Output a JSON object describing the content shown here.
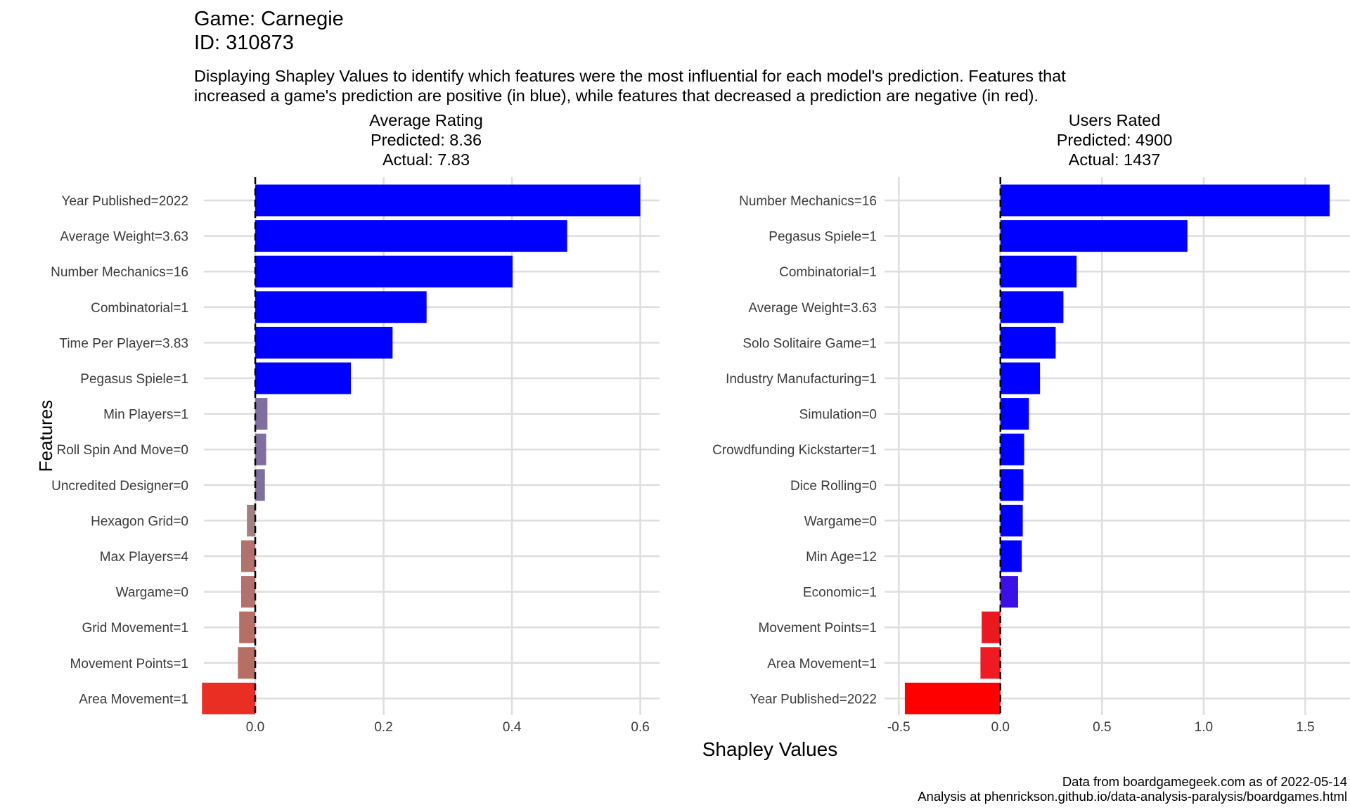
{
  "header": {
    "title_line1": "Game: Carnegie",
    "title_line2": "ID: 310873",
    "subtitle_line1": "Displaying Shapley Values to identify which features were the most influential for each model's prediction. Features that",
    "subtitle_line2": "increased a game's prediction are positive (in blue), while features that decreased a prediction are negative (in red)."
  },
  "axes": {
    "ylabel": "Features",
    "xlabel": "Shapley Values"
  },
  "caption": {
    "line1": "Data from boardgamegeek.com as of 2022-05-14",
    "line2": "Analysis at phenrickson.github.io/data-analysis-paralysis/boardgames.html"
  },
  "colors": {
    "positive": "#0000ff",
    "negative": "#ff0000",
    "grid": "#dedede",
    "zero_line": "#000000"
  },
  "chart_data": [
    {
      "type": "bar",
      "orientation": "horizontal",
      "title_lines": [
        "Average Rating",
        "Predicted: 8.36",
        "Actual: 7.83"
      ],
      "xlim": [
        -0.08,
        0.63
      ],
      "xticks": [
        0.0,
        0.2,
        0.4,
        0.6
      ],
      "xtick_labels": [
        "0.0",
        "0.2",
        "0.4",
        "0.6"
      ],
      "grid": true,
      "zero_line": "dashed",
      "categories": [
        "Year Published=2022",
        "Average Weight=3.63",
        "Number Mechanics=16",
        "Combinatorial=1",
        "Time Per Player=3.83",
        "Pegasus Spiele=1",
        "Min Players=1",
        "Roll Spin And Move=0",
        "Uncredited Designer=0",
        "Hexagon Grid=0",
        "Max Players=4",
        "Wargame=0",
        "Grid Movement=1",
        "Movement Points=1",
        "Area Movement=1"
      ],
      "values": [
        0.6,
        0.486,
        0.401,
        0.267,
        0.214,
        0.149,
        0.019,
        0.017,
        0.015,
        -0.013,
        -0.022,
        -0.022,
        -0.025,
        -0.027,
        -0.083
      ],
      "bar_colors": [
        "#0000ff",
        "#0000ff",
        "#0000ff",
        "#0000ff",
        "#0000ff",
        "#0000ff",
        "#7f6e9e",
        "#7f6e9e",
        "#7e6f9c",
        "#a08180",
        "#b0726a",
        "#b0726a",
        "#b56f66",
        "#b66f64",
        "#e92e24"
      ]
    },
    {
      "type": "bar",
      "orientation": "horizontal",
      "title_lines": [
        "Users Rated",
        "Predicted: 4900",
        "Actual: 1437"
      ],
      "xlim": [
        -0.57,
        1.72
      ],
      "xticks": [
        -0.5,
        0.0,
        0.5,
        1.0,
        1.5
      ],
      "xtick_labels": [
        "-0.5",
        "0.0",
        "0.5",
        "1.0",
        "1.5"
      ],
      "grid": true,
      "zero_line": "dashed",
      "categories": [
        "Number Mechanics=16",
        "Pegasus Spiele=1",
        "Combinatorial=1",
        "Average Weight=3.63",
        "Solo Solitaire Game=1",
        "Industry Manufacturing=1",
        "Simulation=0",
        "Crowdfunding Kickstarter=1",
        "Dice Rolling=0",
        "Wargame=0",
        "Min Age=12",
        "Economic=1",
        "Movement Points=1",
        "Area Movement=1",
        "Year Published=2022"
      ],
      "values": [
        1.62,
        0.92,
        0.375,
        0.31,
        0.272,
        0.195,
        0.14,
        0.117,
        0.113,
        0.11,
        0.105,
        0.087,
        -0.092,
        -0.098,
        -0.47
      ],
      "bar_colors": [
        "#0000ff",
        "#0000ff",
        "#0000ff",
        "#0000ff",
        "#0000ff",
        "#0000ff",
        "#0000ff",
        "#0000ff",
        "#0000ff",
        "#0000ff",
        "#0000ff",
        "#3b10e6",
        "#e9191f",
        "#ef1a22",
        "#ff0000"
      ]
    }
  ]
}
